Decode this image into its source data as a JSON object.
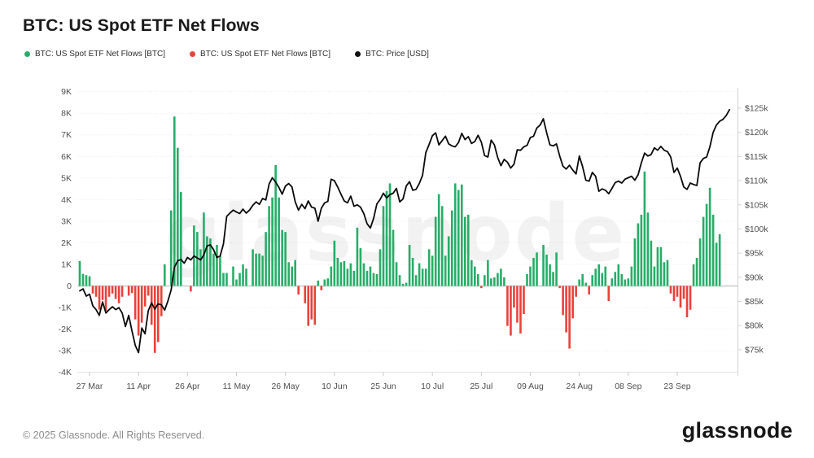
{
  "header": {
    "title": "BTC: US Spot ETF Net Flows"
  },
  "legend": {
    "items": [
      {
        "label": "BTC: US Spot ETF Net Flows [BTC]",
        "color": "#27ad68"
      },
      {
        "label": "BTC: US Spot ETF Net Flows [BTC]",
        "color": "#e8423a"
      },
      {
        "label": "BTC: Price [USD]",
        "color": "#111111"
      }
    ]
  },
  "watermark": "glassnode",
  "footer": {
    "copyright": "© 2025 Glassnode. All Rights Reserved.",
    "logo_text": "glassnode"
  },
  "chart_data": {
    "type": "bar",
    "title": "BTC: US Spot ETF Net Flows",
    "grid": "horizontal-dotted",
    "legend_position": "top-left",
    "x_axis": {
      "ticks": [
        {
          "label": "27 Mar",
          "day": 3
        },
        {
          "label": "11 Apr",
          "day": 18
        },
        {
          "label": "26 Apr",
          "day": 33
        },
        {
          "label": "11 May",
          "day": 48
        },
        {
          "label": "26 May",
          "day": 63
        },
        {
          "label": "10 Jun",
          "day": 78
        },
        {
          "label": "25 Jun",
          "day": 93
        },
        {
          "label": "10 Jul",
          "day": 108
        },
        {
          "label": "25 Jul",
          "day": 123
        },
        {
          "label": "09 Aug",
          "day": 138
        },
        {
          "label": "24 Aug",
          "day": 153
        },
        {
          "label": "08 Sep",
          "day": 168
        },
        {
          "label": "23 Sep",
          "day": 183
        }
      ]
    },
    "y_left": {
      "unit": "BTC",
      "range": [
        -4000,
        9000
      ],
      "tick_labels": [
        "9K",
        "8K",
        "7K",
        "6K",
        "5K",
        "4K",
        "3K",
        "2K",
        "1K",
        "0",
        "-1K",
        "-2K",
        "-3K",
        "-4K"
      ],
      "tick_values": [
        9000,
        8000,
        7000,
        6000,
        5000,
        4000,
        3000,
        2000,
        1000,
        0,
        -1000,
        -2000,
        -3000,
        -4000
      ]
    },
    "y_right": {
      "unit": "USD",
      "range": [
        75000,
        125000
      ],
      "tick_labels": [
        "$125k",
        "$120k",
        "$115k",
        "$110k",
        "$105k",
        "$100k",
        "$95k",
        "$90k",
        "$85k",
        "$80k",
        "$75k"
      ],
      "tick_values": [
        125,
        120,
        115,
        110,
        105,
        100,
        95,
        90,
        85,
        80,
        75
      ]
    },
    "series": [
      {
        "name": "BTC: US Spot ETF Net Flows [BTC]",
        "type": "bar",
        "positive_color": "#27ad68",
        "negative_color": "#e8423a",
        "points": [
          [
            0,
            1150
          ],
          [
            1,
            560
          ],
          [
            2,
            500
          ],
          [
            3,
            450
          ],
          [
            4,
            -350
          ],
          [
            5,
            -500
          ],
          [
            6,
            -1100
          ],
          [
            7,
            -650
          ],
          [
            8,
            -1150
          ],
          [
            9,
            -500
          ],
          [
            10,
            -350
          ],
          [
            11,
            -600
          ],
          [
            12,
            -800
          ],
          [
            13,
            -500
          ],
          [
            15,
            -450
          ],
          [
            16,
            -330
          ],
          [
            17,
            -1550
          ],
          [
            18,
            -2300
          ],
          [
            19,
            -1700
          ],
          [
            20,
            -950
          ],
          [
            21,
            -450
          ],
          [
            22,
            -1800
          ],
          [
            23,
            -3100
          ],
          [
            24,
            -2600
          ],
          [
            25,
            -1400
          ],
          [
            26,
            1000
          ],
          [
            28,
            3500
          ],
          [
            29,
            7850
          ],
          [
            30,
            6400
          ],
          [
            31,
            4350
          ],
          [
            34,
            -260
          ],
          [
            35,
            2800
          ],
          [
            36,
            2500
          ],
          [
            37,
            1700
          ],
          [
            38,
            3400
          ],
          [
            39,
            2300
          ],
          [
            40,
            2200
          ],
          [
            41,
            1500
          ],
          [
            42,
            1900
          ],
          [
            43,
            1400
          ],
          [
            44,
            600
          ],
          [
            45,
            600
          ],
          [
            47,
            900
          ],
          [
            48,
            300
          ],
          [
            49,
            600
          ],
          [
            50,
            1000
          ],
          [
            51,
            800
          ],
          [
            53,
            1700
          ],
          [
            54,
            1500
          ],
          [
            55,
            1500
          ],
          [
            56,
            1400
          ],
          [
            57,
            2500
          ],
          [
            58,
            3700
          ],
          [
            59,
            4100
          ],
          [
            60,
            5600
          ],
          [
            61,
            4100
          ],
          [
            62,
            2600
          ],
          [
            63,
            2500
          ],
          [
            64,
            1100
          ],
          [
            65,
            900
          ],
          [
            66,
            1200
          ],
          [
            67,
            -400
          ],
          [
            69,
            -800
          ],
          [
            70,
            -1850
          ],
          [
            71,
            -1550
          ],
          [
            72,
            -1800
          ],
          [
            73,
            250
          ],
          [
            74,
            -200
          ],
          [
            75,
            300
          ],
          [
            76,
            350
          ],
          [
            77,
            900
          ],
          [
            78,
            2100
          ],
          [
            79,
            1300
          ],
          [
            80,
            1100
          ],
          [
            81,
            1150
          ],
          [
            82,
            800
          ],
          [
            83,
            1050
          ],
          [
            84,
            700
          ],
          [
            85,
            2700
          ],
          [
            86,
            1750
          ],
          [
            87,
            1050
          ],
          [
            88,
            700
          ],
          [
            89,
            900
          ],
          [
            90,
            600
          ],
          [
            91,
            550
          ],
          [
            92,
            1700
          ],
          [
            93,
            3700
          ],
          [
            94,
            4400
          ],
          [
            95,
            4750
          ],
          [
            96,
            2600
          ],
          [
            97,
            1100
          ],
          [
            98,
            500
          ],
          [
            99,
            100
          ],
          [
            100,
            150
          ],
          [
            101,
            1900
          ],
          [
            102,
            1300
          ],
          [
            103,
            500
          ],
          [
            104,
            1050
          ],
          [
            105,
            800
          ],
          [
            106,
            800
          ],
          [
            107,
            1700
          ],
          [
            108,
            1400
          ],
          [
            109,
            3200
          ],
          [
            110,
            4250
          ],
          [
            111,
            3700
          ],
          [
            112,
            1400
          ],
          [
            113,
            2300
          ],
          [
            114,
            3500
          ],
          [
            115,
            4750
          ],
          [
            116,
            4450
          ],
          [
            117,
            4700
          ],
          [
            118,
            3200
          ],
          [
            119,
            3300
          ],
          [
            120,
            1200
          ],
          [
            121,
            900
          ],
          [
            122,
            550
          ],
          [
            123,
            -100
          ],
          [
            124,
            500
          ],
          [
            125,
            1200
          ],
          [
            126,
            350
          ],
          [
            127,
            400
          ],
          [
            128,
            600
          ],
          [
            129,
            800
          ],
          [
            130,
            400
          ],
          [
            131,
            -1850
          ],
          [
            132,
            -2300
          ],
          [
            133,
            -1000
          ],
          [
            134,
            -1700
          ],
          [
            135,
            -2200
          ],
          [
            136,
            -1300
          ],
          [
            137,
            550
          ],
          [
            138,
            900
          ],
          [
            139,
            1300
          ],
          [
            140,
            1550
          ],
          [
            142,
            1900
          ],
          [
            143,
            1450
          ],
          [
            144,
            1000
          ],
          [
            145,
            650
          ],
          [
            146,
            1550
          ],
          [
            147,
            -100
          ],
          [
            148,
            -1350
          ],
          [
            149,
            -2150
          ],
          [
            150,
            -2900
          ],
          [
            151,
            -1500
          ],
          [
            152,
            -500
          ],
          [
            153,
            300
          ],
          [
            154,
            550
          ],
          [
            155,
            150
          ],
          [
            156,
            -400
          ],
          [
            157,
            500
          ],
          [
            158,
            800
          ],
          [
            159,
            1000
          ],
          [
            160,
            600
          ],
          [
            161,
            900
          ],
          [
            162,
            -700
          ],
          [
            163,
            350
          ],
          [
            164,
            650
          ],
          [
            165,
            1000
          ],
          [
            166,
            550
          ],
          [
            167,
            300
          ],
          [
            168,
            350
          ],
          [
            169,
            900
          ],
          [
            170,
            2200
          ],
          [
            171,
            2900
          ],
          [
            172,
            3300
          ],
          [
            173,
            5300
          ],
          [
            174,
            3400
          ],
          [
            175,
            2100
          ],
          [
            176,
            900
          ],
          [
            177,
            1800
          ],
          [
            178,
            1800
          ],
          [
            179,
            1100
          ],
          [
            180,
            1200
          ],
          [
            181,
            -350
          ],
          [
            182,
            -700
          ],
          [
            183,
            -500
          ],
          [
            184,
            -1000
          ],
          [
            185,
            -600
          ],
          [
            186,
            -1450
          ],
          [
            187,
            -1100
          ],
          [
            188,
            1000
          ],
          [
            189,
            1300
          ],
          [
            190,
            2200
          ],
          [
            191,
            3200
          ],
          [
            192,
            3800
          ],
          [
            193,
            4550
          ],
          [
            194,
            3300
          ],
          [
            195,
            2000
          ],
          [
            196,
            2400
          ]
        ]
      },
      {
        "name": "BTC: Price [USD]",
        "type": "line",
        "color": "#0a0a0a",
        "start_day": 0,
        "values_usd_k": [
          87.2,
          87.6,
          86.1,
          86.5,
          84.1,
          83.3,
          82.1,
          84.9,
          82.6,
          83.3,
          83.9,
          83.3,
          83.7,
          82.6,
          79.8,
          82.1,
          78.9,
          75.9,
          74.4,
          79.5,
          78.3,
          83.1,
          84.7,
          83.4,
          84.5,
          84.3,
          83.2,
          85.1,
          87.4,
          92.1,
          93.4,
          93.7,
          92.9,
          94.1,
          93.6,
          94.4,
          94.0,
          93.6,
          94.6,
          96.5,
          96.7,
          95.7,
          94.1,
          94.4,
          96.9,
          102.6,
          103.3,
          103.9,
          103.5,
          103.2,
          104.1,
          103.3,
          103.9,
          104.9,
          105.6,
          105.1,
          106.3,
          106.0,
          109.3,
          110.6,
          109.7,
          108.6,
          107.2,
          108.9,
          109.4,
          108.7,
          105.6,
          103.9,
          105.1,
          104.2,
          105.8,
          104.5,
          104.3,
          101.6,
          104.3,
          105.4,
          105.7,
          110.3,
          110.0,
          108.7,
          107.2,
          105.8,
          105.4,
          106.8,
          104.7,
          105.0,
          104.5,
          103.2,
          101.1,
          100.2,
          102.2,
          105.2,
          106.1,
          107.4,
          106.4,
          107.1,
          107.4,
          108.4,
          105.6,
          106.2,
          108.9,
          109.8,
          108.0,
          108.2,
          109.4,
          111.1,
          115.8,
          117.5,
          119.3,
          119.9,
          117.4,
          118.3,
          119.2,
          117.6,
          117.2,
          117.0,
          117.9,
          119.8,
          118.5,
          119.1,
          117.7,
          118.1,
          119.4,
          118.0,
          115.2,
          114.9,
          118.4,
          117.4,
          114.8,
          113.1,
          114.4,
          113.8,
          112.6,
          113.4,
          116.4,
          116.3,
          117.0,
          117.3,
          118.9,
          119.2,
          120.9,
          121.5,
          122.8,
          119.9,
          117.4,
          117.2,
          117.6,
          115.1,
          113.0,
          112.4,
          113.2,
          112.2,
          111.4,
          115.1,
          112.9,
          110.1,
          109.9,
          111.7,
          110.9,
          107.8,
          108.3,
          108.0,
          107.3,
          108.4,
          109.6,
          109.9,
          109.5,
          110.3,
          110.6,
          110.9,
          110.1,
          111.2,
          113.7,
          115.7,
          115.1,
          115.4,
          116.8,
          116.3,
          117.1,
          116.3,
          116.0,
          114.9,
          111.7,
          112.6,
          110.9,
          108.7,
          108.2,
          109.5,
          109.2,
          109.0,
          113.7,
          114.6,
          114.9,
          117.0,
          120.0,
          121.5,
          122.3,
          122.7,
          123.5,
          124.7
        ]
      }
    ]
  }
}
